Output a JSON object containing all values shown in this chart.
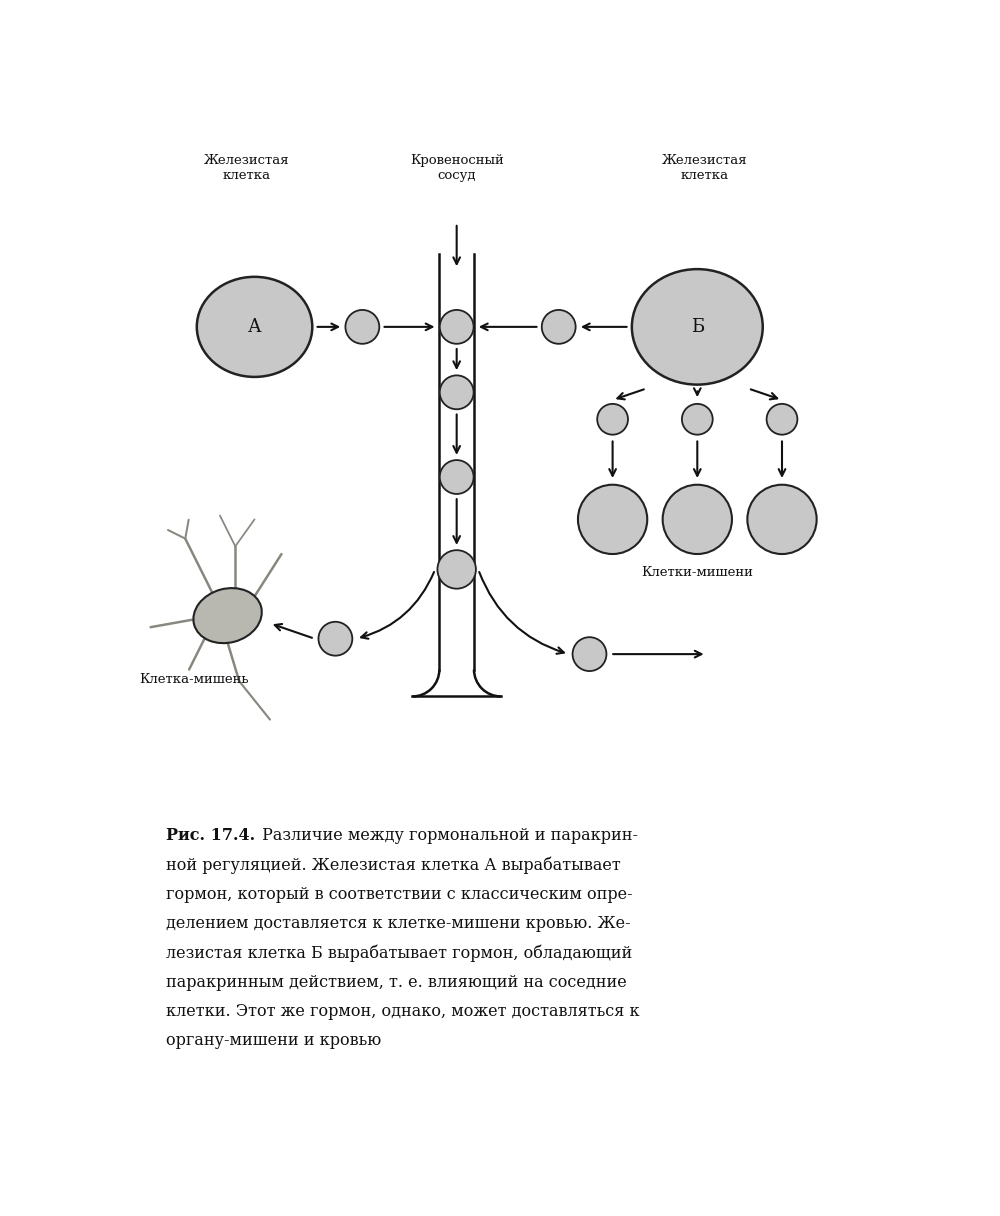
{
  "bg_color": "#ffffff",
  "cell_fill": "#c8c8c8",
  "cell_edge": "#222222",
  "line_color": "#111111",
  "text_color": "#111111",
  "neuron_fill": "#b0b0a8",
  "neuron_edge": "#333333",
  "label_zhelez": "Железистая\nклетка",
  "label_krov": "Кровеносный\nсосуд",
  "label_kletki_misheni": "Клетки-мишени",
  "label_kletka_mishen": "Клетка-мишень",
  "label_A": "А",
  "label_B": "Б",
  "caption_bold": "Рис. 17.4.",
  "caption_rest_lines": [
    " Различие между гормональной и паракрин-",
    "ной регуляцией. Железистая клетка А вырабатывает",
    "гормон, который в соответствии с классическим опре-",
    "делением доставляется к клетке-мишени кровью. Же-",
    "лезистая клетка Б вырабатывает гормон, обладающий",
    "паракринным действием, т. е. влияющий на соседние",
    "клетки. Этот же гормон, однако, может доставляться к",
    "органу-мишени и кровью"
  ],
  "fig_width": 10.0,
  "fig_height": 12.16
}
